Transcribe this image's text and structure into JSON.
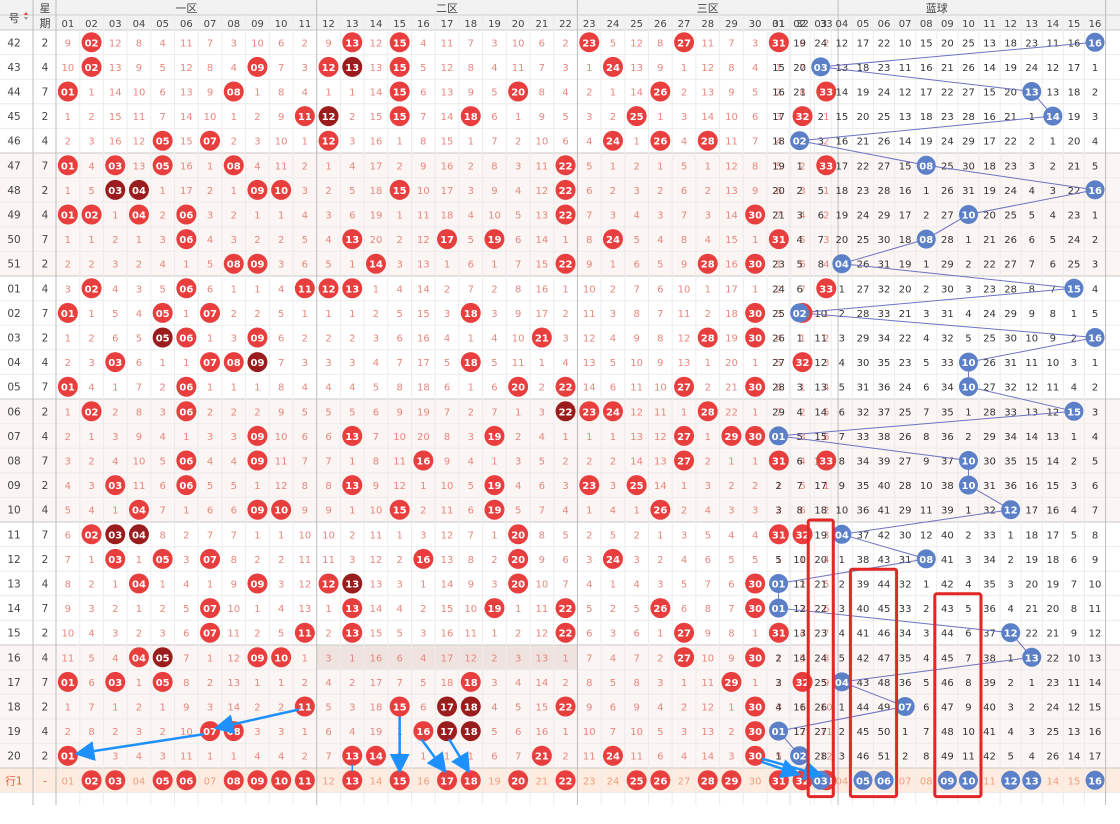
{
  "header": {
    "issue_label": "号",
    "weekday_label_top": "星",
    "weekday_label_bottom": "期",
    "zones": [
      "一区",
      "二区",
      "三区",
      "蓝球"
    ],
    "red_numbers": [
      "01",
      "02",
      "03",
      "04",
      "05",
      "06",
      "07",
      "08",
      "09",
      "10",
      "11",
      "12",
      "13",
      "14",
      "15",
      "16",
      "17",
      "18",
      "19",
      "20",
      "21",
      "22",
      "23",
      "24",
      "25",
      "26",
      "27",
      "28",
      "29",
      "30",
      "31",
      "32",
      "33"
    ],
    "blue_numbers": [
      "01",
      "02",
      "03",
      "04",
      "05",
      "06",
      "07",
      "08",
      "09",
      "10",
      "11",
      "12",
      "13",
      "14",
      "15",
      "16"
    ]
  },
  "rows": [
    {
      "issue": "42",
      "weekday": "2",
      "red": [
        2,
        13,
        15,
        23,
        27,
        31
      ],
      "blue": 16
    },
    {
      "issue": "43",
      "weekday": "4",
      "red": [
        2,
        9,
        12,
        13,
        15,
        24
      ],
      "blue": 3
    },
    {
      "issue": "44",
      "weekday": "7",
      "red": [
        1,
        8,
        15,
        20,
        26,
        33
      ],
      "blue": 13
    },
    {
      "issue": "45",
      "weekday": "2",
      "red": [
        11,
        12,
        15,
        18,
        25,
        32
      ],
      "blue": 14
    },
    {
      "issue": "46",
      "weekday": "4",
      "red": [
        5,
        7,
        12,
        24,
        26,
        28
      ],
      "blue": 2
    },
    {
      "issue": "47",
      "weekday": "7",
      "red": [
        1,
        3,
        5,
        8,
        22,
        33
      ],
      "blue": 8
    },
    {
      "issue": "48",
      "weekday": "2",
      "red": [
        3,
        4,
        9,
        10,
        15,
        22
      ],
      "blue": 16
    },
    {
      "issue": "49",
      "weekday": "4",
      "red": [
        1,
        2,
        4,
        6,
        22,
        30
      ],
      "blue": 10
    },
    {
      "issue": "50",
      "weekday": "7",
      "red": [
        6,
        13,
        17,
        19,
        24,
        31
      ],
      "blue": 8
    },
    {
      "issue": "51",
      "weekday": "2",
      "red": [
        8,
        9,
        14,
        22,
        28,
        30
      ],
      "blue": 4
    },
    {
      "issue": "01",
      "weekday": "4",
      "red": [
        2,
        6,
        11,
        12,
        13,
        33
      ],
      "blue": 15
    },
    {
      "issue": "02",
      "weekday": "7",
      "red": [
        1,
        5,
        7,
        18,
        30,
        32
      ],
      "blue": 2
    },
    {
      "issue": "03",
      "weekday": "2",
      "red": [
        5,
        6,
        9,
        21,
        28,
        30
      ],
      "blue": 16
    },
    {
      "issue": "04",
      "weekday": "4",
      "red": [
        3,
        7,
        8,
        9,
        18,
        32
      ],
      "blue": 10
    },
    {
      "issue": "05",
      "weekday": "7",
      "red": [
        1,
        6,
        20,
        22,
        27,
        30
      ],
      "blue": 10
    },
    {
      "issue": "06",
      "weekday": "2",
      "red": [
        2,
        6,
        22,
        23,
        24,
        28
      ],
      "blue": 15
    },
    {
      "issue": "07",
      "weekday": "4",
      "red": [
        9,
        13,
        19,
        27,
        29,
        30
      ],
      "blue": 1
    },
    {
      "issue": "08",
      "weekday": "7",
      "red": [
        6,
        9,
        16,
        27,
        31,
        33
      ],
      "blue": 10
    },
    {
      "issue": "09",
      "weekday": "2",
      "red": [
        3,
        6,
        13,
        19,
        23,
        25
      ],
      "blue": 10
    },
    {
      "issue": "10",
      "weekday": "4",
      "red": [
        4,
        9,
        10,
        15,
        19,
        26
      ],
      "blue": 12
    },
    {
      "issue": "11",
      "weekday": "7",
      "red": [
        2,
        3,
        4,
        20,
        31,
        32
      ],
      "blue": 4
    },
    {
      "issue": "12",
      "weekday": "2",
      "red": [
        3,
        5,
        7,
        16,
        20,
        24
      ],
      "blue": 8
    },
    {
      "issue": "13",
      "weekday": "4",
      "red": [
        4,
        9,
        12,
        13,
        20,
        30
      ],
      "blue": 1
    },
    {
      "issue": "14",
      "weekday": "7",
      "red": [
        7,
        13,
        19,
        22,
        26,
        30
      ],
      "blue": 1
    },
    {
      "issue": "15",
      "weekday": "2",
      "red": [
        7,
        11,
        13,
        22,
        27,
        31
      ],
      "blue": 12
    },
    {
      "issue": "16",
      "weekday": "4",
      "red": [
        4,
        5,
        9,
        10,
        27,
        30
      ],
      "blue": 13
    },
    {
      "issue": "17",
      "weekday": "7",
      "red": [
        1,
        3,
        5,
        18,
        29,
        32
      ],
      "blue": 4
    },
    {
      "issue": "18",
      "weekday": "2",
      "red": [
        11,
        15,
        17,
        18,
        22,
        30
      ],
      "blue": 7
    },
    {
      "issue": "19",
      "weekday": "4",
      "red": [
        7,
        8,
        16,
        17,
        18,
        30
      ],
      "blue": 1
    },
    {
      "issue": "20",
      "weekday": "2",
      "red": [
        1,
        13,
        14,
        21,
        24,
        30
      ],
      "blue": 2
    }
  ],
  "footer": {
    "label": "行1",
    "weekday": "-",
    "red": [
      2,
      3,
      5,
      6,
      8,
      9,
      10,
      11,
      13,
      15,
      17,
      18,
      20,
      22,
      25,
      26,
      28,
      29,
      31,
      32,
      33
    ],
    "blue": [
      3,
      5,
      6,
      9,
      10,
      12,
      13,
      16
    ]
  },
  "colors": {
    "red_ball": "#e83e3e",
    "dark_red_ball": "#9b1c1c",
    "blue_ball": "#5b80c8",
    "line_color": "#6f72c2",
    "arrow_color": "#1e90ff",
    "box_color": "#e32626"
  }
}
